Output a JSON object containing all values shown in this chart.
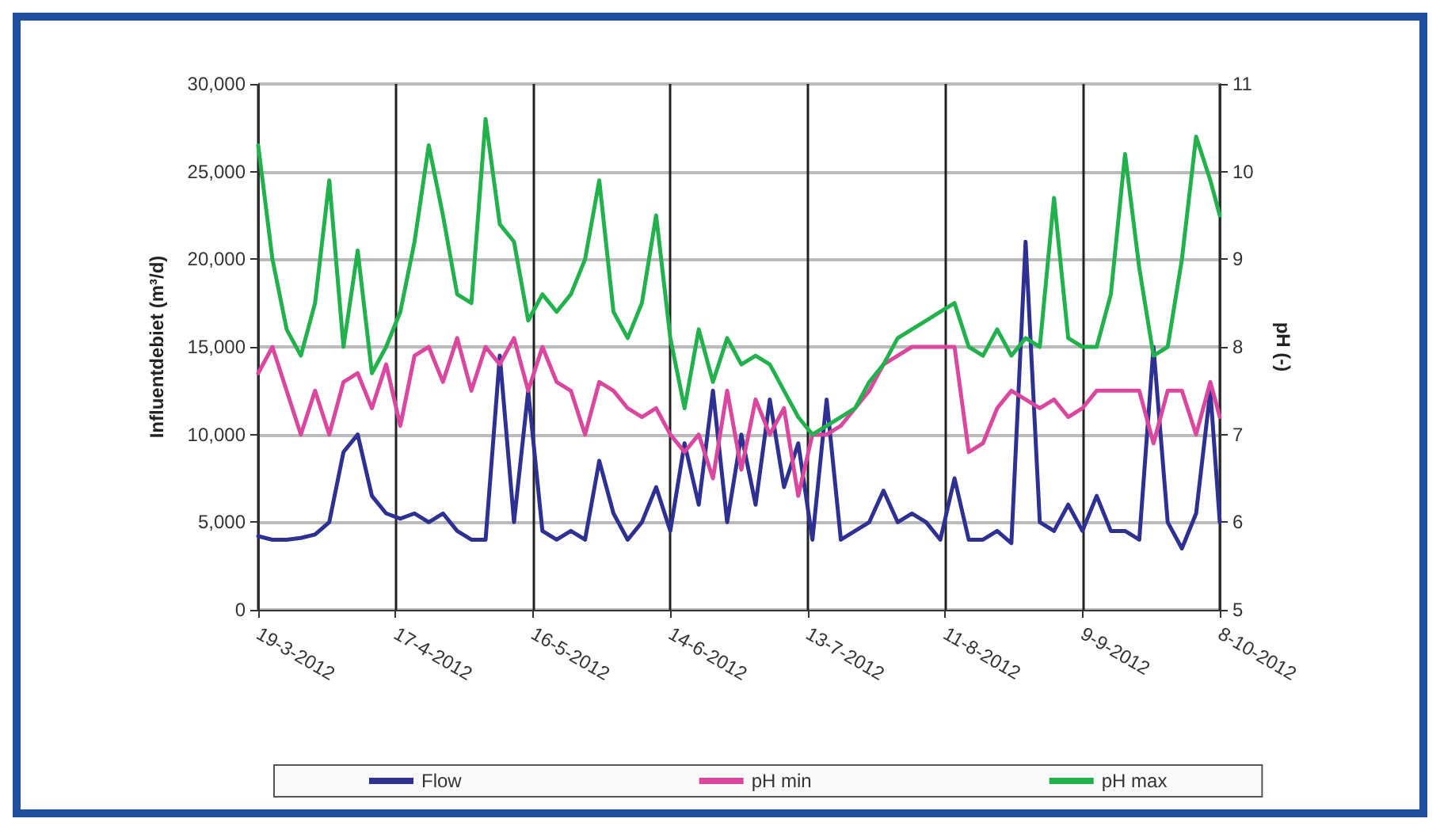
{
  "chart_data": {
    "type": "line",
    "ylabel": "Influentdebiet (m³/d)",
    "y2label": "pH (-)",
    "x": [
      "2012-03-19",
      "2012-03-22",
      "2012-03-25",
      "2012-03-28",
      "2012-03-31",
      "2012-04-03",
      "2012-04-06",
      "2012-04-09",
      "2012-04-12",
      "2012-04-15",
      "2012-04-18",
      "2012-04-21",
      "2012-04-24",
      "2012-04-27",
      "2012-04-30",
      "2012-05-03",
      "2012-05-06",
      "2012-05-09",
      "2012-05-12",
      "2012-05-15",
      "2012-05-18",
      "2012-05-21",
      "2012-05-24",
      "2012-05-27",
      "2012-05-30",
      "2012-06-02",
      "2012-06-05",
      "2012-06-08",
      "2012-06-11",
      "2012-06-14",
      "2012-06-17",
      "2012-06-20",
      "2012-06-23",
      "2012-06-26",
      "2012-06-29",
      "2012-07-02",
      "2012-07-05",
      "2012-07-08",
      "2012-07-11",
      "2012-07-14",
      "2012-07-17",
      "2012-07-20",
      "2012-07-23",
      "2012-07-26",
      "2012-07-29",
      "2012-08-01",
      "2012-08-04",
      "2012-08-07",
      "2012-08-10",
      "2012-08-13",
      "2012-08-16",
      "2012-08-19",
      "2012-08-22",
      "2012-08-25",
      "2012-08-28",
      "2012-08-31",
      "2012-09-03",
      "2012-09-06",
      "2012-09-09",
      "2012-09-12",
      "2012-09-15",
      "2012-09-18",
      "2012-09-21",
      "2012-09-24",
      "2012-09-27",
      "2012-09-30",
      "2012-10-03",
      "2012-10-06",
      "2012-10-08"
    ],
    "series": [
      {
        "name": "Flow",
        "color": "#2e3192",
        "values": [
          4200,
          4000,
          4000,
          4100,
          4300,
          5000,
          9000,
          10000,
          6500,
          5500,
          5200,
          5500,
          5000,
          5500,
          4500,
          4000,
          4000,
          14500,
          5000,
          12500,
          4500,
          4000,
          4500,
          4000,
          8500,
          5500,
          4000,
          5000,
          7000,
          4500,
          9500,
          6000,
          12500,
          5000,
          10000,
          6000,
          12000,
          7000,
          9500,
          4000,
          12000,
          4000,
          4500,
          5000,
          6800,
          5000,
          5500,
          5000,
          4000,
          7500,
          4000,
          4000,
          4500,
          3800,
          21000,
          5000,
          4500,
          6000,
          4500,
          6500,
          4500,
          4500,
          4000,
          15000,
          5000,
          3500,
          5500,
          12500,
          5000
        ]
      },
      {
        "name": "pH min",
        "color": "#d9489e",
        "axis": "y2",
        "values": [
          7.7,
          8.0,
          7.5,
          7.0,
          7.5,
          7.0,
          7.6,
          7.7,
          7.3,
          7.8,
          7.1,
          7.9,
          8.0,
          7.6,
          8.1,
          7.5,
          8.0,
          7.8,
          8.1,
          7.5,
          8.0,
          7.6,
          7.5,
          7.0,
          7.6,
          7.5,
          7.3,
          7.2,
          7.3,
          7.0,
          6.8,
          7.0,
          6.5,
          7.5,
          6.6,
          7.4,
          7.0,
          7.3,
          6.3,
          7.0,
          7.0,
          7.1,
          7.3,
          7.5,
          7.8,
          7.9,
          8.0,
          8.0,
          8.0,
          8.0,
          6.8,
          6.9,
          7.3,
          7.5,
          7.4,
          7.3,
          7.4,
          7.2,
          7.3,
          7.5,
          7.5,
          7.5,
          7.5,
          6.9,
          7.5,
          7.5,
          7.0,
          7.6,
          7.2
        ]
      },
      {
        "name": "pH max",
        "color": "#22b14c",
        "axis": "y2",
        "values": [
          10.3,
          9.0,
          8.2,
          7.9,
          8.5,
          9.9,
          8.0,
          9.1,
          7.7,
          8.0,
          8.4,
          9.2,
          10.3,
          9.5,
          8.6,
          8.5,
          10.6,
          9.4,
          9.2,
          8.3,
          8.6,
          8.4,
          8.6,
          9.0,
          9.9,
          8.4,
          8.1,
          8.5,
          9.5,
          8.1,
          7.3,
          8.2,
          7.6,
          8.1,
          7.8,
          7.9,
          7.8,
          7.5,
          7.2,
          7.0,
          7.1,
          7.2,
          7.3,
          7.6,
          7.8,
          8.1,
          8.2,
          8.3,
          8.4,
          8.5,
          8.0,
          7.9,
          8.2,
          7.9,
          8.1,
          8.0,
          9.7,
          8.1,
          8.0,
          8.0,
          8.6,
          10.2,
          8.9,
          7.9,
          8.0,
          9.0,
          10.4,
          9.9,
          9.5
        ]
      }
    ],
    "xlim": [
      "2012-03-19",
      "2012-10-08"
    ],
    "xticks": [
      {
        "value": "2012-03-19",
        "label": "19-3-2012"
      },
      {
        "value": "2012-04-17",
        "label": "17-4-2012"
      },
      {
        "value": "2012-05-16",
        "label": "16-5-2012"
      },
      {
        "value": "2012-06-14",
        "label": "14-6-2012"
      },
      {
        "value": "2012-07-13",
        "label": "13-7-2012"
      },
      {
        "value": "2012-08-11",
        "label": "11-8-2012"
      },
      {
        "value": "2012-09-09",
        "label": "9-9-2012"
      },
      {
        "value": "2012-10-08",
        "label": "8-10-2012"
      }
    ],
    "ylim": [
      0,
      30000
    ],
    "yticks": [
      0,
      {
        "value": 5000,
        "label": "5,000"
      },
      {
        "value": 10000,
        "label": "10,000"
      },
      {
        "value": 15000,
        "label": "15,000"
      },
      {
        "value": 20000,
        "label": "20,000"
      },
      {
        "value": 25000,
        "label": "25,000"
      },
      {
        "value": 30000,
        "label": "30,000"
      }
    ],
    "y2lim": [
      5,
      11
    ],
    "y2ticks": [
      5,
      6,
      7,
      8,
      9,
      10,
      11
    ],
    "grid": true,
    "legend": "bottom",
    "marker": "none",
    "line_style": "solid"
  }
}
